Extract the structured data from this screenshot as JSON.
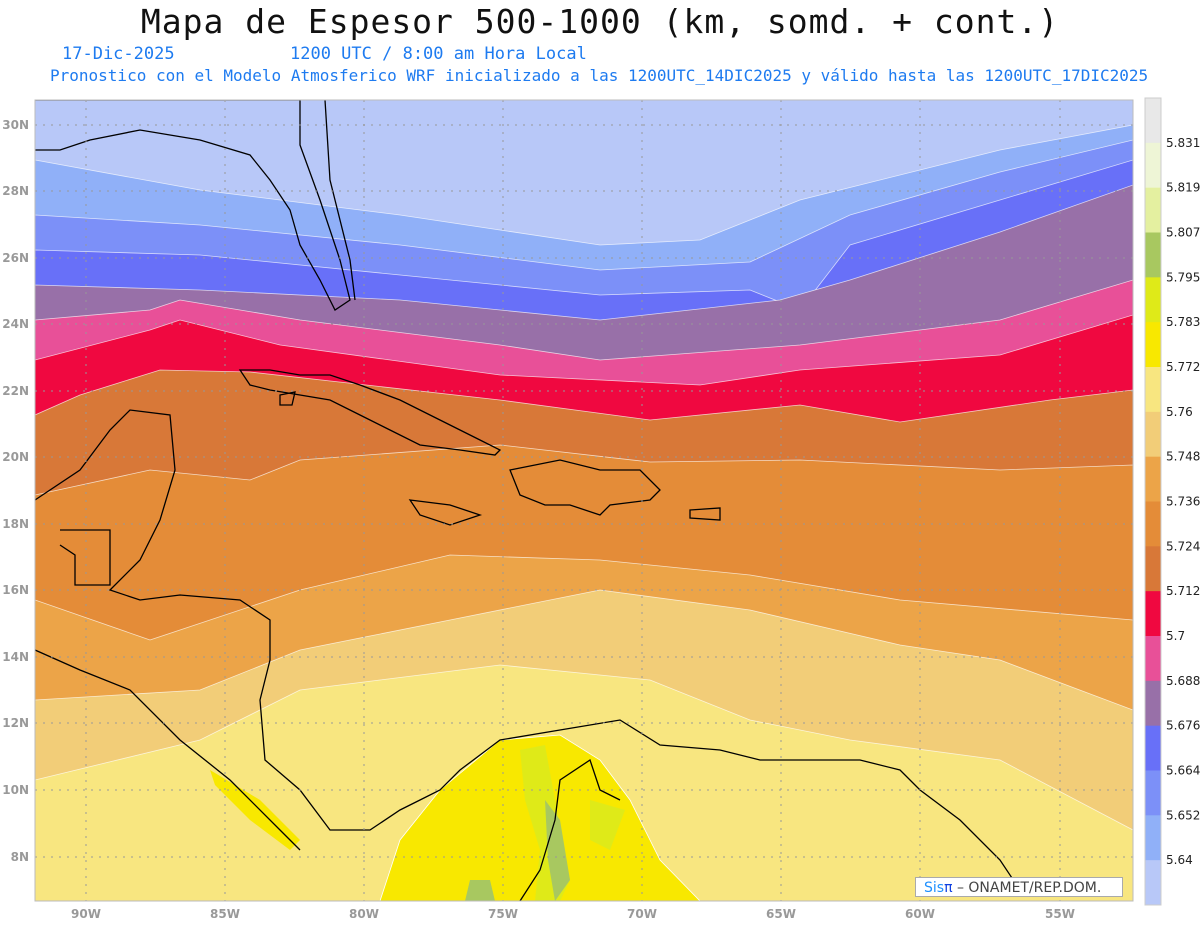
{
  "header": {
    "title": "Mapa de Espesor 500-1000 (km, somd. + cont.)",
    "date": "17-Dic-2025",
    "time": "1200 UTC / 8:00 am Hora Local",
    "subtitle": "Pronostico con el Modelo Atmosferico WRF inicializado a las 1200UTC_14DIC2025 y válido hasta las  1200UTC_17DIC2025"
  },
  "map": {
    "lon_ticks": [
      "90W",
      "85W",
      "80W",
      "75W",
      "70W",
      "65W",
      "60W",
      "55W"
    ],
    "lat_ticks": [
      "30N",
      "28N",
      "26N",
      "24N",
      "22N",
      "20N",
      "18N",
      "16N",
      "14N",
      "12N",
      "10N",
      "8N"
    ]
  },
  "colorbar": {
    "levels": [
      "5.831",
      "5.819",
      "5.807",
      "5.795",
      "5.783",
      "5.772",
      "5.76",
      "5.748",
      "5.736",
      "5.724",
      "5.712",
      "5.7",
      "5.688",
      "5.676",
      "5.664",
      "5.652",
      "5.64"
    ],
    "colors": [
      "#e8e8e8",
      "#eef5d6",
      "#e4f0a0",
      "#a8c860",
      "#dfea18",
      "#f8e800",
      "#f8e680",
      "#f2cd78",
      "#eca448",
      "#e48c38",
      "#d87838",
      "#f00840",
      "#e85098",
      "#9870a8",
      "#6870f8",
      "#7c90f8",
      "#90b0f8",
      "#b8c8f8"
    ]
  },
  "credit": {
    "sis": "Sis",
    "pi": "π",
    "text": " – ONAMET/REP.DOM."
  }
}
